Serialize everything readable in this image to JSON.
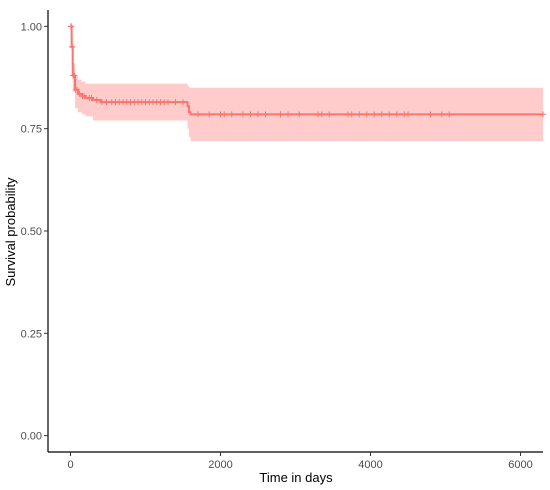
{
  "chart_data": {
    "type": "line",
    "title": "",
    "xlabel": "Time in days",
    "ylabel": "Survival probability",
    "xlim": [
      -300,
      6300
    ],
    "ylim": [
      -0.04,
      1.04
    ],
    "x_ticks": [
      0,
      2000,
      4000,
      6000
    ],
    "x_tick_labels": [
      "0",
      "2000",
      "4000",
      "6000"
    ],
    "y_ticks": [
      0.0,
      0.25,
      0.5,
      0.75,
      1.0
    ],
    "y_tick_labels": [
      "0.00",
      "0.25",
      "0.50",
      "0.75",
      "1.00"
    ],
    "grid": false,
    "legend": "none",
    "colors": {
      "line": "#F8766D",
      "ci_fill": "#FFCCCB"
    },
    "series": [
      {
        "step_x": [
          0,
          15,
          30,
          60,
          100,
          150,
          200,
          300,
          400,
          1540,
          1560,
          1580,
          1600,
          6300
        ],
        "survival": [
          1.0,
          0.95,
          0.88,
          0.845,
          0.835,
          0.83,
          0.825,
          0.82,
          0.815,
          0.815,
          0.805,
          0.79,
          0.785,
          0.785
        ],
        "ci_upper": [
          1.0,
          0.98,
          0.91,
          0.88,
          0.87,
          0.865,
          0.86,
          0.86,
          0.86,
          0.86,
          0.855,
          0.85,
          0.85,
          0.85
        ],
        "ci_lower": [
          1.0,
          0.9,
          0.84,
          0.8,
          0.79,
          0.785,
          0.78,
          0.77,
          0.77,
          0.77,
          0.75,
          0.73,
          0.72,
          0.72
        ],
        "censor_x": [
          5,
          10,
          20,
          25,
          35,
          45,
          50,
          70,
          90,
          120,
          160,
          180,
          250,
          280,
          350,
          420,
          480,
          550,
          600,
          650,
          700,
          750,
          800,
          850,
          900,
          950,
          1000,
          1050,
          1100,
          1150,
          1200,
          1250,
          1300,
          1400,
          1500,
          1700,
          1850,
          2000,
          2050,
          2150,
          2300,
          2400,
          2500,
          2600,
          2800,
          2900,
          3050,
          3300,
          3350,
          3450,
          3700,
          3750,
          3850,
          3950,
          4050,
          4150,
          4250,
          4350,
          4450,
          4500,
          4800,
          4950,
          5050,
          6300
        ]
      }
    ]
  }
}
